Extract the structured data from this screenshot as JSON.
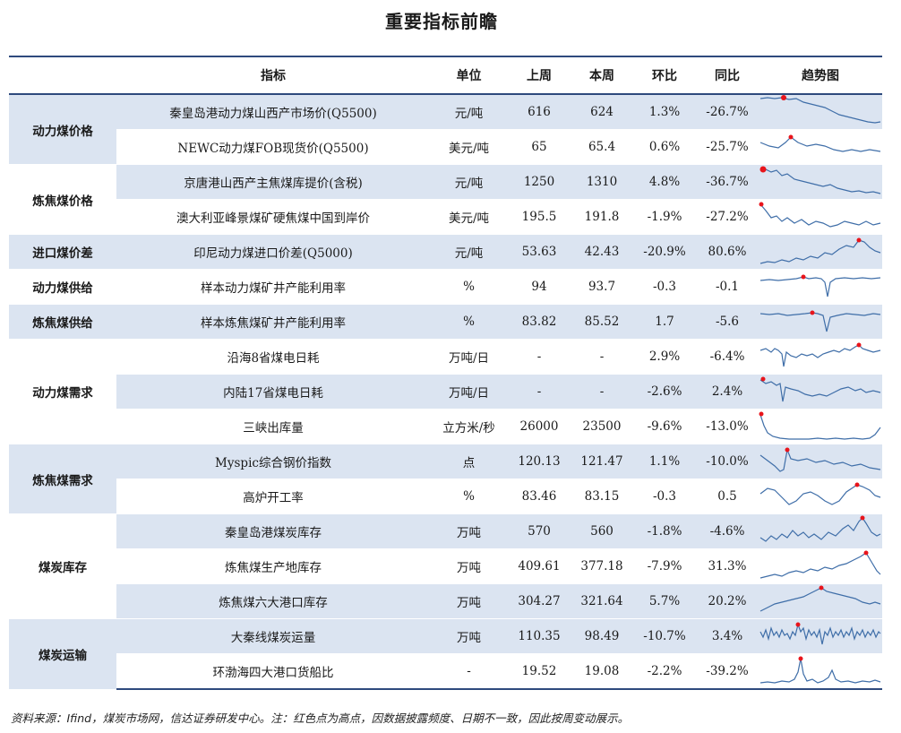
{
  "title": "重要指标前瞻",
  "headers": {
    "indicator": "指标",
    "unit": "单位",
    "last_week": "上周",
    "this_week": "本周",
    "mom": "环比",
    "yoy": "同比",
    "trend": "趋势图"
  },
  "categories": [
    "动力煤价格",
    "炼焦煤价格",
    "进口煤价差",
    "动力煤供给",
    "炼焦煤供给",
    "动力煤需求",
    "炼焦煤需求",
    "煤炭库存",
    "煤炭运输"
  ],
  "rows": [
    {
      "name": "秦皇岛港动力煤山西产市场价(Q5500)",
      "unit": "元/吨",
      "last": "616",
      "cur": "624",
      "mom": "1.3%",
      "yoy": "-26.7%"
    },
    {
      "name": "NEWC动力煤FOB现货价(Q5500)",
      "unit": "美元/吨",
      "last": "65",
      "cur": "65.4",
      "mom": "0.6%",
      "yoy": "-25.7%"
    },
    {
      "name": "京唐港山西产主焦煤库提价(含税)",
      "unit": "元/吨",
      "last": "1250",
      "cur": "1310",
      "mom": "4.8%",
      "yoy": "-36.7%"
    },
    {
      "name": "澳大利亚峰景煤矿硬焦煤中国到岸价",
      "unit": "美元/吨",
      "last": "195.5",
      "cur": "191.8",
      "mom": "-1.9%",
      "yoy": "-27.2%"
    },
    {
      "name": "印尼动力煤进口价差(Q5000)",
      "unit": "元/吨",
      "last": "53.63",
      "cur": "42.43",
      "mom": "-20.9%",
      "yoy": "80.6%"
    },
    {
      "name": "样本动力煤矿井产能利用率",
      "unit": "%",
      "last": "94",
      "cur": "93.7",
      "mom": "-0.3",
      "yoy": "-0.1"
    },
    {
      "name": "样本炼焦煤矿井产能利用率",
      "unit": "%",
      "last": "83.82",
      "cur": "85.52",
      "mom": "1.7",
      "yoy": "-5.6"
    },
    {
      "name": "沿海8省煤电日耗",
      "unit": "万吨/日",
      "last": "-",
      "cur": "-",
      "mom": "2.9%",
      "yoy": "-6.4%"
    },
    {
      "name": "内陆17省煤电日耗",
      "unit": "万吨/日",
      "last": "-",
      "cur": "-",
      "mom": "-2.6%",
      "yoy": "2.4%"
    },
    {
      "name": "三峡出库量",
      "unit": "立方米/秒",
      "last": "26000",
      "cur": "23500",
      "mom": "-9.6%",
      "yoy": "-13.0%"
    },
    {
      "name": "Myspic综合钢价指数",
      "unit": "点",
      "last": "120.13",
      "cur": "121.47",
      "mom": "1.1%",
      "yoy": "-10.0%"
    },
    {
      "name": "高炉开工率",
      "unit": "%",
      "last": "83.46",
      "cur": "83.15",
      "mom": "-0.3",
      "yoy": "0.5"
    },
    {
      "name": "秦皇岛港煤炭库存",
      "unit": "万吨",
      "last": "570",
      "cur": "560",
      "mom": "-1.8%",
      "yoy": "-4.6%"
    },
    {
      "name": "炼焦煤生产地库存",
      "unit": "万吨",
      "last": "409.61",
      "cur": "377.18",
      "mom": "-7.9%",
      "yoy": "31.3%"
    },
    {
      "name": "炼焦煤六大港口库存",
      "unit": "万吨",
      "last": "304.27",
      "cur": "321.64",
      "mom": "5.7%",
      "yoy": "20.2%"
    },
    {
      "name": "大秦线煤炭运量",
      "unit": "万吨",
      "last": "110.35",
      "cur": "98.49",
      "mom": "-10.7%",
      "yoy": "3.4%"
    },
    {
      "name": "环渤海四大港口货船比",
      "unit": "-",
      "last": "19.52",
      "cur": "19.08",
      "mom": "-2.2%",
      "yoy": "-39.2%"
    }
  ],
  "colors": {
    "line": "#3f6ea8",
    "high_point": "#e8141b",
    "shade": "#dbe4f1",
    "rule": "#2e4a7d"
  },
  "source": "资料来源：Ifind，煤炭市场网，信达证券研发中心。注：红色点为高点，因数据披露频度、日期不一致，因此按周变动展示。"
}
